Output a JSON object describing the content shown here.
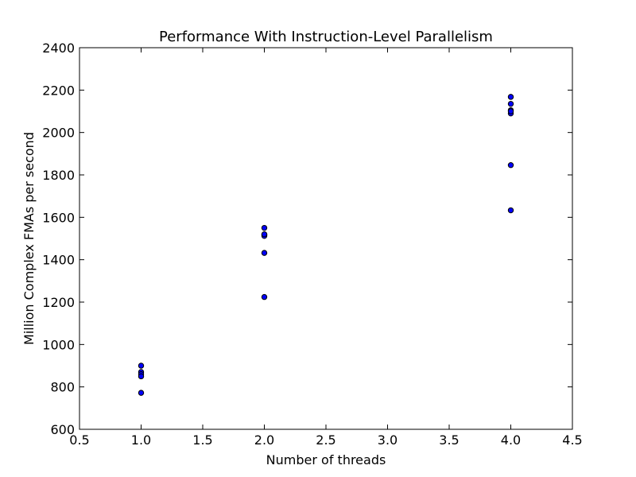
{
  "chart_data": {
    "type": "scatter",
    "title": "Performance With Instruction-Level Parallelism",
    "xlabel": "Number of threads",
    "ylabel": "Million Complex FMAs per second",
    "xlim": [
      0.5,
      4.5
    ],
    "ylim": [
      600,
      2400
    ],
    "xticks": [
      "0.5",
      "1.0",
      "1.5",
      "2.0",
      "2.5",
      "3.0",
      "3.5",
      "4.0",
      "4.5"
    ],
    "yticks": [
      "600",
      "800",
      "1000",
      "1200",
      "1400",
      "1600",
      "1800",
      "2000",
      "2200",
      "2400"
    ],
    "grid": false,
    "marker_color": "#0000ff",
    "marker_edge_color": "#000000",
    "series": [
      {
        "x": [
          1,
          1,
          1,
          1,
          1,
          2,
          2,
          2,
          2,
          2,
          2,
          4,
          4,
          4,
          4,
          4,
          4,
          4
        ],
        "y": [
          900,
          870,
          860,
          850,
          772,
          1550,
          1518,
          1512,
          1432,
          1224,
          1520,
          2168,
          2135,
          2105,
          2090,
          1846,
          1633,
          2100
        ]
      }
    ]
  }
}
